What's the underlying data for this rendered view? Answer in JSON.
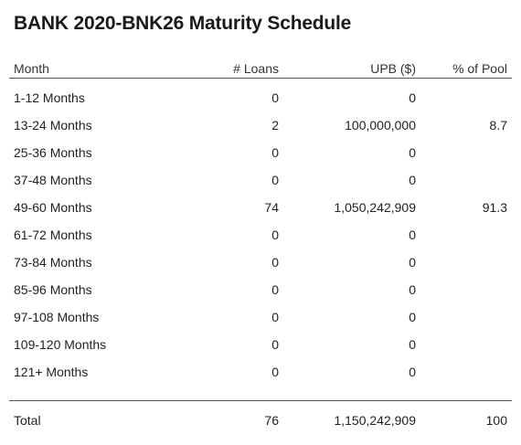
{
  "title": "BANK 2020-BNK26 Maturity Schedule",
  "columns": {
    "month": "Month",
    "loans": "# Loans",
    "upb": "UPB ($)",
    "pool": "% of Pool"
  },
  "rows": [
    {
      "month": "1-12 Months",
      "loans": "0",
      "upb": "0",
      "pool": ""
    },
    {
      "month": "13-24 Months",
      "loans": "2",
      "upb": "100,000,000",
      "pool": "8.7"
    },
    {
      "month": "25-36 Months",
      "loans": "0",
      "upb": "0",
      "pool": ""
    },
    {
      "month": "37-48 Months",
      "loans": "0",
      "upb": "0",
      "pool": ""
    },
    {
      "month": "49-60 Months",
      "loans": "74",
      "upb": "1,050,242,909",
      "pool": "91.3"
    },
    {
      "month": "61-72 Months",
      "loans": "0",
      "upb": "0",
      "pool": ""
    },
    {
      "month": "73-84 Months",
      "loans": "0",
      "upb": "0",
      "pool": ""
    },
    {
      "month": "85-96 Months",
      "loans": "0",
      "upb": "0",
      "pool": ""
    },
    {
      "month": "97-108 Months",
      "loans": "0",
      "upb": "0",
      "pool": ""
    },
    {
      "month": "109-120 Months",
      "loans": "0",
      "upb": "0",
      "pool": ""
    },
    {
      "month": "121+ Months",
      "loans": "0",
      "upb": "0",
      "pool": ""
    }
  ],
  "total": {
    "month": "Total",
    "loans": "76",
    "upb": "1,150,242,909",
    "pool": "100"
  }
}
